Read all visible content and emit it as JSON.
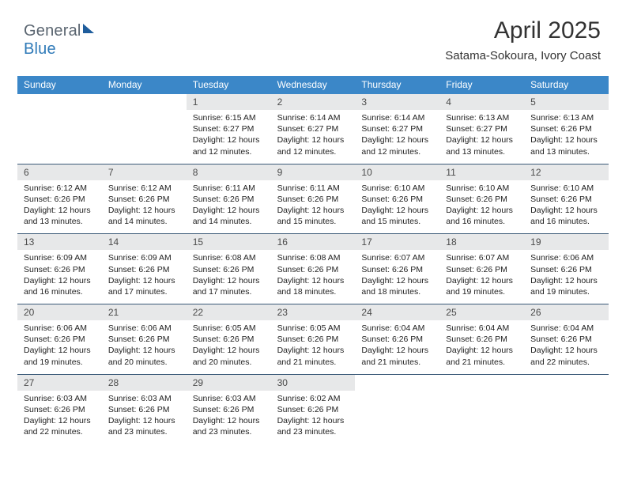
{
  "brand": {
    "part1": "General",
    "part2": "Blue"
  },
  "title": "April 2025",
  "subtitle": "Satama-Sokoura, Ivory Coast",
  "colors": {
    "header_bg": "#3b87c8",
    "header_text": "#ffffff",
    "daynum_bg": "#e7e8e9",
    "divider": "#3b5a78",
    "logo_gray": "#5a6570",
    "logo_blue": "#2f7ab8"
  },
  "weekdays": [
    "Sunday",
    "Monday",
    "Tuesday",
    "Wednesday",
    "Thursday",
    "Friday",
    "Saturday"
  ],
  "weeks": [
    [
      {
        "blank": true
      },
      {
        "blank": true
      },
      {
        "n": "1",
        "sr": "6:15 AM",
        "ss": "6:27 PM",
        "dl": "12 hours and 12 minutes."
      },
      {
        "n": "2",
        "sr": "6:14 AM",
        "ss": "6:27 PM",
        "dl": "12 hours and 12 minutes."
      },
      {
        "n": "3",
        "sr": "6:14 AM",
        "ss": "6:27 PM",
        "dl": "12 hours and 12 minutes."
      },
      {
        "n": "4",
        "sr": "6:13 AM",
        "ss": "6:27 PM",
        "dl": "12 hours and 13 minutes."
      },
      {
        "n": "5",
        "sr": "6:13 AM",
        "ss": "6:26 PM",
        "dl": "12 hours and 13 minutes."
      }
    ],
    [
      {
        "n": "6",
        "sr": "6:12 AM",
        "ss": "6:26 PM",
        "dl": "12 hours and 13 minutes."
      },
      {
        "n": "7",
        "sr": "6:12 AM",
        "ss": "6:26 PM",
        "dl": "12 hours and 14 minutes."
      },
      {
        "n": "8",
        "sr": "6:11 AM",
        "ss": "6:26 PM",
        "dl": "12 hours and 14 minutes."
      },
      {
        "n": "9",
        "sr": "6:11 AM",
        "ss": "6:26 PM",
        "dl": "12 hours and 15 minutes."
      },
      {
        "n": "10",
        "sr": "6:10 AM",
        "ss": "6:26 PM",
        "dl": "12 hours and 15 minutes."
      },
      {
        "n": "11",
        "sr": "6:10 AM",
        "ss": "6:26 PM",
        "dl": "12 hours and 16 minutes."
      },
      {
        "n": "12",
        "sr": "6:10 AM",
        "ss": "6:26 PM",
        "dl": "12 hours and 16 minutes."
      }
    ],
    [
      {
        "n": "13",
        "sr": "6:09 AM",
        "ss": "6:26 PM",
        "dl": "12 hours and 16 minutes."
      },
      {
        "n": "14",
        "sr": "6:09 AM",
        "ss": "6:26 PM",
        "dl": "12 hours and 17 minutes."
      },
      {
        "n": "15",
        "sr": "6:08 AM",
        "ss": "6:26 PM",
        "dl": "12 hours and 17 minutes."
      },
      {
        "n": "16",
        "sr": "6:08 AM",
        "ss": "6:26 PM",
        "dl": "12 hours and 18 minutes."
      },
      {
        "n": "17",
        "sr": "6:07 AM",
        "ss": "6:26 PM",
        "dl": "12 hours and 18 minutes."
      },
      {
        "n": "18",
        "sr": "6:07 AM",
        "ss": "6:26 PM",
        "dl": "12 hours and 19 minutes."
      },
      {
        "n": "19",
        "sr": "6:06 AM",
        "ss": "6:26 PM",
        "dl": "12 hours and 19 minutes."
      }
    ],
    [
      {
        "n": "20",
        "sr": "6:06 AM",
        "ss": "6:26 PM",
        "dl": "12 hours and 19 minutes."
      },
      {
        "n": "21",
        "sr": "6:06 AM",
        "ss": "6:26 PM",
        "dl": "12 hours and 20 minutes."
      },
      {
        "n": "22",
        "sr": "6:05 AM",
        "ss": "6:26 PM",
        "dl": "12 hours and 20 minutes."
      },
      {
        "n": "23",
        "sr": "6:05 AM",
        "ss": "6:26 PM",
        "dl": "12 hours and 21 minutes."
      },
      {
        "n": "24",
        "sr": "6:04 AM",
        "ss": "6:26 PM",
        "dl": "12 hours and 21 minutes."
      },
      {
        "n": "25",
        "sr": "6:04 AM",
        "ss": "6:26 PM",
        "dl": "12 hours and 21 minutes."
      },
      {
        "n": "26",
        "sr": "6:04 AM",
        "ss": "6:26 PM",
        "dl": "12 hours and 22 minutes."
      }
    ],
    [
      {
        "n": "27",
        "sr": "6:03 AM",
        "ss": "6:26 PM",
        "dl": "12 hours and 22 minutes."
      },
      {
        "n": "28",
        "sr": "6:03 AM",
        "ss": "6:26 PM",
        "dl": "12 hours and 23 minutes."
      },
      {
        "n": "29",
        "sr": "6:03 AM",
        "ss": "6:26 PM",
        "dl": "12 hours and 23 minutes."
      },
      {
        "n": "30",
        "sr": "6:02 AM",
        "ss": "6:26 PM",
        "dl": "12 hours and 23 minutes."
      },
      {
        "blank": true
      },
      {
        "blank": true
      },
      {
        "blank": true
      }
    ]
  ],
  "labels": {
    "sunrise": "Sunrise:",
    "sunset": "Sunset:",
    "daylight": "Daylight:"
  }
}
